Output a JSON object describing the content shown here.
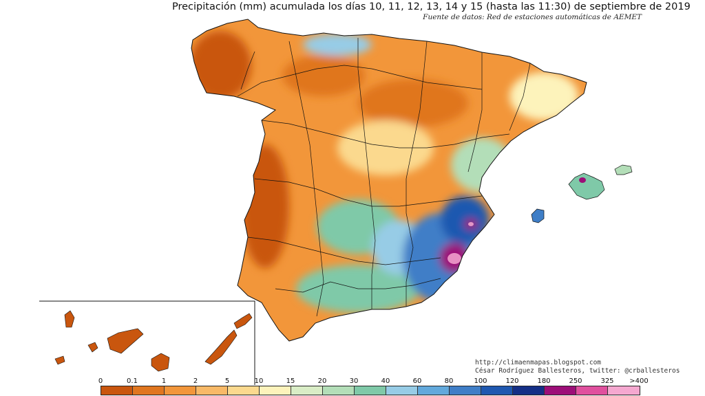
{
  "title": "Precipitación (mm) acumulada los días 10, 11, 12, 13, 14 y 15 (hasta las 11:30) de septiembre de 2019",
  "source": "Fuente de datos: Red de estaciones automáticas de AEMET",
  "credit": {
    "line1": "http://climaenmapas.blogspot.com",
    "line2": "César Rodríguez Ballesteros, twitter: @crballesteros"
  },
  "legend": {
    "labels": [
      "0",
      "0.1",
      "1",
      "2",
      "5",
      "10",
      "15",
      "20",
      "30",
      "40",
      "60",
      "80",
      "100",
      "120",
      "180",
      "250",
      "325",
      ">400"
    ],
    "colors": [
      "#c9560e",
      "#e0761f",
      "#f2963a",
      "#f8b967",
      "#fbd98e",
      "#fdf3bb",
      "#d9edc6",
      "#b3deb8",
      "#7fc9a8",
      "#97cce6",
      "#62a9dc",
      "#3f7ec7",
      "#1f58b0",
      "#142f86",
      "#9c0e78",
      "#e0509e",
      "#f5a8d0"
    ]
  },
  "map": {
    "region_names": [
      "Península Ibérica",
      "Islas Baleares",
      "Islas Canarias"
    ],
    "colors": {
      "sea": "#ffffff",
      "border": "#111111",
      "very_dry": "#c9560e",
      "dry": "#f2963a",
      "light": "#fbd98e",
      "moderate": "#7fc9a8",
      "wet": "#62a9dc",
      "very_wet": "#1f58b0",
      "extreme": "#9c0e78",
      "extreme_peak": "#f5a8d0"
    }
  }
}
